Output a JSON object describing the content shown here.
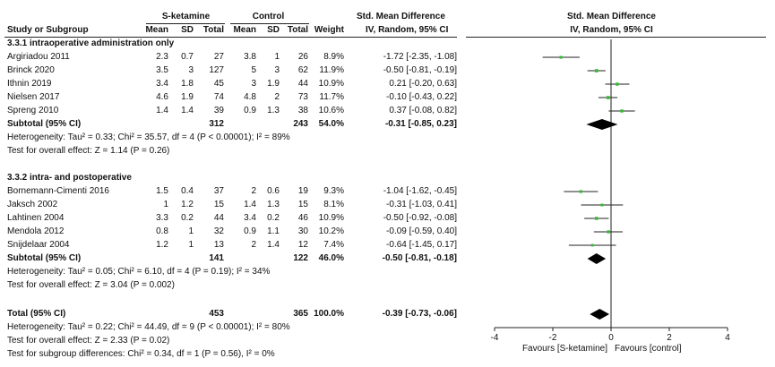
{
  "header": {
    "group1": "S-ketamine",
    "group2": "Control",
    "smd_title": "Std. Mean Difference",
    "plot_title": "Std. Mean Difference",
    "col_study": "Study or Subgroup",
    "col_mean1": "Mean",
    "col_sd1": "SD",
    "col_total1": "Total",
    "col_mean2": "Mean",
    "col_sd2": "SD",
    "col_total2": "Total",
    "col_weight": "Weight",
    "col_ci": "IV, Random, 95% CI",
    "plot_ci": "IV, Random, 95% CI"
  },
  "subgroups": [
    {
      "title": "3.3.1 intraoperative administration only",
      "studies": [
        {
          "name": "Argiriadou 2011",
          "mean1": "2.3",
          "sd1": "0.7",
          "total1": "27",
          "mean2": "3.8",
          "sd2": "1",
          "total2": "26",
          "weight": "8.9%",
          "ci": "-1.72 [-2.35, -1.08]"
        },
        {
          "name": "Brinck 2020",
          "mean1": "3.5",
          "sd1": "3",
          "total1": "127",
          "mean2": "5",
          "sd2": "3",
          "total2": "62",
          "weight": "11.9%",
          "ci": "-0.50 [-0.81, -0.19]"
        },
        {
          "name": "Ithnin 2019",
          "mean1": "3.4",
          "sd1": "1.8",
          "total1": "45",
          "mean2": "3",
          "sd2": "1.9",
          "total2": "44",
          "weight": "10.9%",
          "ci": "0.21 [-0.20, 0.63]"
        },
        {
          "name": "Nielsen 2017",
          "mean1": "4.6",
          "sd1": "1.9",
          "total1": "74",
          "mean2": "4.8",
          "sd2": "2",
          "total2": "73",
          "weight": "11.7%",
          "ci": "-0.10 [-0.43, 0.22]"
        },
        {
          "name": "Spreng 2010",
          "mean1": "1.4",
          "sd1": "1.4",
          "total1": "39",
          "mean2": "0.9",
          "sd2": "1.3",
          "total2": "38",
          "weight": "10.6%",
          "ci": "0.37 [-0.08, 0.82]"
        }
      ],
      "subtotal": {
        "label": "Subtotal (95% CI)",
        "total1": "312",
        "total2": "243",
        "weight": "54.0%",
        "ci": "-0.31 [-0.85, 0.23]"
      },
      "heterogeneity": "Heterogeneity: Tau² = 0.33; Chi² = 35.57, df = 4 (P < 0.00001); I² = 89%",
      "overall_test": "Test for overall effect: Z = 1.14 (P = 0.26)"
    },
    {
      "title": "3.3.2 intra- and postoperative",
      "studies": [
        {
          "name": "Bornemann-Cimenti 2016",
          "mean1": "1.5",
          "sd1": "0.4",
          "total1": "37",
          "mean2": "2",
          "sd2": "0.6",
          "total2": "19",
          "weight": "9.3%",
          "ci": "-1.04 [-1.62, -0.45]"
        },
        {
          "name": "Jaksch 2002",
          "mean1": "1",
          "sd1": "1.2",
          "total1": "15",
          "mean2": "1.4",
          "sd2": "1.3",
          "total2": "15",
          "weight": "8.1%",
          "ci": "-0.31 [-1.03, 0.41]"
        },
        {
          "name": "Lahtinen 2004",
          "mean1": "3.3",
          "sd1": "0.2",
          "total1": "44",
          "mean2": "3.4",
          "sd2": "0.2",
          "total2": "46",
          "weight": "10.9%",
          "ci": "-0.50 [-0.92, -0.08]"
        },
        {
          "name": "Mendola 2012",
          "mean1": "0.8",
          "sd1": "1",
          "total1": "32",
          "mean2": "0.9",
          "sd2": "1.1",
          "total2": "30",
          "weight": "10.2%",
          "ci": "-0.09 [-0.59, 0.40]"
        },
        {
          "name": "Snijdelaar 2004",
          "mean1": "1.2",
          "sd1": "1",
          "total1": "13",
          "mean2": "2",
          "sd2": "1.4",
          "total2": "12",
          "weight": "7.4%",
          "ci": "-0.64 [-1.45, 0.17]"
        }
      ],
      "subtotal": {
        "label": "Subtotal (95% CI)",
        "total1": "141",
        "total2": "122",
        "weight": "46.0%",
        "ci": "-0.50 [-0.81, -0.18]"
      },
      "heterogeneity": "Heterogeneity: Tau² = 0.05; Chi² = 6.10, df = 4 (P = 0.19); I² = 34%",
      "overall_test": "Test for overall effect: Z = 3.04 (P = 0.002)"
    }
  ],
  "total": {
    "label": "Total (95% CI)",
    "total1": "453",
    "total2": "365",
    "weight": "100.0%",
    "ci": "-0.39 [-0.73, -0.06]",
    "heterogeneity": "Heterogeneity: Tau² = 0.22; Chi² = 44.49, df = 9 (P < 0.00001); I² = 80%",
    "overall_test": "Test for overall effect: Z = 2.33 (P = 0.02)",
    "subgroup_test": "Test for subgroup differences: Chi² = 0.34, df = 1 (P = 0.56), I² = 0%"
  },
  "footer": {
    "favours_left": "Favours [S-ketamine]",
    "favours_right": "Favours [control]"
  },
  "chart_data": {
    "type": "forest",
    "xlim": [
      -4,
      4
    ],
    "ticks": [
      -4,
      -2,
      0,
      2,
      4
    ],
    "tick_labels": [
      "-4",
      "-2",
      "0",
      "2",
      "4"
    ],
    "studies": [
      {
        "name": "Argiriadou 2011",
        "est": -1.72,
        "lo": -2.35,
        "hi": -1.08,
        "weight": 8.9
      },
      {
        "name": "Brinck 2020",
        "est": -0.5,
        "lo": -0.81,
        "hi": -0.19,
        "weight": 11.9
      },
      {
        "name": "Ithnin 2019",
        "est": 0.21,
        "lo": -0.2,
        "hi": 0.63,
        "weight": 10.9
      },
      {
        "name": "Nielsen 2017",
        "est": -0.1,
        "lo": -0.43,
        "hi": 0.22,
        "weight": 11.7
      },
      {
        "name": "Spreng 2010",
        "est": 0.37,
        "lo": -0.08,
        "hi": 0.82,
        "weight": 10.6
      },
      {
        "name": "Bornemann-Cimenti 2016",
        "est": -1.04,
        "lo": -1.62,
        "hi": -0.45,
        "weight": 9.3
      },
      {
        "name": "Jaksch 2002",
        "est": -0.31,
        "lo": -1.03,
        "hi": 0.41,
        "weight": 8.1
      },
      {
        "name": "Lahtinen 2004",
        "est": -0.5,
        "lo": -0.92,
        "hi": -0.08,
        "weight": 10.9
      },
      {
        "name": "Mendola 2012",
        "est": -0.09,
        "lo": -0.59,
        "hi": 0.4,
        "weight": 10.2
      },
      {
        "name": "Snijdelaar 2004",
        "est": -0.64,
        "lo": -1.45,
        "hi": 0.17,
        "weight": 7.4
      }
    ],
    "pooled": [
      {
        "name": "Subtotal 3.3.1",
        "est": -0.31,
        "lo": -0.85,
        "hi": 0.23
      },
      {
        "name": "Subtotal 3.3.2",
        "est": -0.5,
        "lo": -0.81,
        "hi": -0.18
      },
      {
        "name": "Total",
        "est": -0.39,
        "lo": -0.73,
        "hi": -0.06
      }
    ],
    "marker_color": "#33bb33",
    "diamond_color": "#000000"
  }
}
